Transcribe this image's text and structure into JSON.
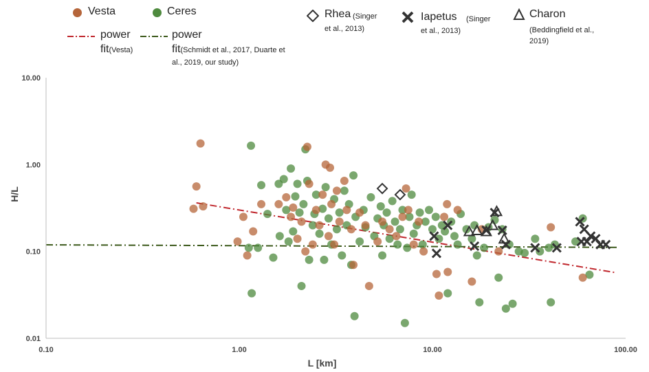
{
  "colors": {
    "vesta": "#b5653a",
    "ceres": "#4e8a3e",
    "vesta_fit": "#c0272d",
    "ceres_fit": "#3d5a1c",
    "markers": "#333333"
  },
  "legend": {
    "vesta": "Vesta",
    "ceres": "Ceres",
    "power_fit_vesta_1": "power",
    "power_fit_vesta_2": "fit",
    "power_fit_vesta_3": "(Vesta)",
    "power_fit_ceres_1": "power",
    "power_fit_ceres_2": "fit",
    "power_fit_ceres_3": "(Schmidt et al., 2017, Duarte et",
    "power_fit_ceres_4": "al., 2019, our study)",
    "rhea": "Rhea",
    "rhea_ref_1": "(Singer",
    "rhea_ref_2": "et al., 2013)",
    "iapetus": "Iapetus",
    "iapetus_ref_1": "(Singer",
    "iapetus_ref_2": "et al., 2013)",
    "charon": "Charon",
    "charon_ref_1": "(Beddingfield et al.,",
    "charon_ref_2": "2019)"
  },
  "chart_data": {
    "type": "scatter",
    "xlabel": "L [km]",
    "ylabel": "H/L",
    "xscale": "log",
    "yscale": "log",
    "xlim": [
      0.1,
      100
    ],
    "ylim": [
      0.01,
      10
    ],
    "xticks": [
      "0.10",
      "1.00",
      "10.00",
      "100.00"
    ],
    "yticks": [
      "0.01",
      "0.10",
      "1.00",
      "10.00"
    ],
    "grid": false,
    "series": [
      {
        "name": "Vesta",
        "marker": "circle",
        "points": [
          [
            0.58,
            0.31
          ],
          [
            0.6,
            0.56
          ],
          [
            0.63,
            1.75
          ],
          [
            0.65,
            0.33
          ],
          [
            0.98,
            0.13
          ],
          [
            1.05,
            0.25
          ],
          [
            1.1,
            0.09
          ],
          [
            1.18,
            0.17
          ],
          [
            1.3,
            0.35
          ],
          [
            1.6,
            0.35
          ],
          [
            1.75,
            0.42
          ],
          [
            1.85,
            0.25
          ],
          [
            1.9,
            0.32
          ],
          [
            2.0,
            0.14
          ],
          [
            2.1,
            0.22
          ],
          [
            2.2,
            0.1
          ],
          [
            2.25,
            1.6
          ],
          [
            2.3,
            0.6
          ],
          [
            2.4,
            0.12
          ],
          [
            2.5,
            0.3
          ],
          [
            2.6,
            0.2
          ],
          [
            2.7,
            0.45
          ],
          [
            2.8,
            1.0
          ],
          [
            2.9,
            0.15
          ],
          [
            2.95,
            0.92
          ],
          [
            3.0,
            0.35
          ],
          [
            3.1,
            0.12
          ],
          [
            3.2,
            0.5
          ],
          [
            3.3,
            0.22
          ],
          [
            3.5,
            0.65
          ],
          [
            3.6,
            0.3
          ],
          [
            3.8,
            0.18
          ],
          [
            3.9,
            0.07
          ],
          [
            4.2,
            0.28
          ],
          [
            4.5,
            0.2
          ],
          [
            4.7,
            0.04
          ],
          [
            5.2,
            0.13
          ],
          [
            5.5,
            0.22
          ],
          [
            6.0,
            0.18
          ],
          [
            6.5,
            0.15
          ],
          [
            7.0,
            0.25
          ],
          [
            7.3,
            0.53
          ],
          [
            7.5,
            0.3
          ],
          [
            8.0,
            0.12
          ],
          [
            8.5,
            0.22
          ],
          [
            9.0,
            0.1
          ],
          [
            10.5,
            0.055
          ],
          [
            10.8,
            0.031
          ],
          [
            11.5,
            0.25
          ],
          [
            11.9,
            0.35
          ],
          [
            12.0,
            0.058
          ],
          [
            13.5,
            0.3
          ],
          [
            16.0,
            0.045
          ],
          [
            18.0,
            0.18
          ],
          [
            22.0,
            0.1
          ],
          [
            41.0,
            0.19
          ],
          [
            60.0,
            0.05
          ]
        ]
      },
      {
        "name": "Ceres",
        "marker": "circle",
        "points": [
          [
            1.12,
            0.11
          ],
          [
            1.15,
            1.65
          ],
          [
            1.16,
            0.033
          ],
          [
            1.25,
            0.11
          ],
          [
            1.3,
            0.58
          ],
          [
            1.4,
            0.27
          ],
          [
            1.5,
            0.085
          ],
          [
            1.6,
            0.6
          ],
          [
            1.62,
            0.15
          ],
          [
            1.7,
            0.68
          ],
          [
            1.75,
            0.3
          ],
          [
            1.8,
            0.13
          ],
          [
            1.85,
            0.9
          ],
          [
            1.9,
            0.17
          ],
          [
            1.95,
            0.43
          ],
          [
            2.0,
            0.6
          ],
          [
            2.05,
            0.28
          ],
          [
            2.1,
            0.04
          ],
          [
            2.15,
            0.35
          ],
          [
            2.2,
            1.5
          ],
          [
            2.25,
            0.65
          ],
          [
            2.3,
            0.08
          ],
          [
            2.4,
            0.2
          ],
          [
            2.45,
            0.27
          ],
          [
            2.5,
            0.45
          ],
          [
            2.6,
            0.16
          ],
          [
            2.7,
            0.31
          ],
          [
            2.75,
            0.08
          ],
          [
            2.8,
            0.55
          ],
          [
            2.9,
            0.24
          ],
          [
            3.0,
            0.12
          ],
          [
            3.1,
            0.4
          ],
          [
            3.2,
            0.18
          ],
          [
            3.3,
            0.28
          ],
          [
            3.4,
            0.09
          ],
          [
            3.5,
            0.5
          ],
          [
            3.6,
            0.2
          ],
          [
            3.7,
            0.35
          ],
          [
            3.8,
            0.07
          ],
          [
            3.9,
            0.75
          ],
          [
            3.95,
            0.018
          ],
          [
            4.0,
            0.25
          ],
          [
            4.2,
            0.13
          ],
          [
            4.4,
            0.3
          ],
          [
            4.5,
            0.19
          ],
          [
            4.8,
            0.42
          ],
          [
            5.0,
            0.15
          ],
          [
            5.2,
            0.24
          ],
          [
            5.4,
            0.33
          ],
          [
            5.5,
            0.09
          ],
          [
            5.6,
            0.2
          ],
          [
            5.8,
            0.28
          ],
          [
            6.0,
            0.14
          ],
          [
            6.2,
            0.38
          ],
          [
            6.4,
            0.22
          ],
          [
            6.6,
            0.12
          ],
          [
            6.8,
            0.18
          ],
          [
            7.0,
            0.3
          ],
          [
            7.2,
            0.015
          ],
          [
            7.4,
            0.11
          ],
          [
            7.6,
            0.25
          ],
          [
            7.8,
            0.45
          ],
          [
            8.0,
            0.16
          ],
          [
            8.3,
            0.2
          ],
          [
            8.6,
            0.28
          ],
          [
            8.9,
            0.12
          ],
          [
            9.2,
            0.22
          ],
          [
            9.6,
            0.3
          ],
          [
            10.0,
            0.18
          ],
          [
            10.4,
            0.25
          ],
          [
            10.8,
            0.14
          ],
          [
            11.2,
            0.2
          ],
          [
            11.6,
            0.17
          ],
          [
            12.0,
            0.033
          ],
          [
            12.5,
            0.22
          ],
          [
            13.0,
            0.15
          ],
          [
            13.5,
            0.12
          ],
          [
            14.0,
            0.27
          ],
          [
            15.0,
            0.18
          ],
          [
            16.0,
            0.14
          ],
          [
            16.5,
            0.2
          ],
          [
            17.0,
            0.09
          ],
          [
            17.5,
            0.026
          ],
          [
            18.5,
            0.11
          ],
          [
            19.5,
            0.19
          ],
          [
            21.0,
            0.23
          ],
          [
            22.0,
            0.05
          ],
          [
            23.0,
            0.18
          ],
          [
            24.0,
            0.022
          ],
          [
            25.0,
            0.12
          ],
          [
            26.0,
            0.025
          ],
          [
            28.0,
            0.1
          ],
          [
            30.0,
            0.096
          ],
          [
            34.0,
            0.14
          ],
          [
            36.0,
            0.1
          ],
          [
            40.0,
            0.11
          ],
          [
            41.0,
            0.026
          ],
          [
            43.0,
            0.12
          ],
          [
            55.0,
            0.13
          ],
          [
            60.0,
            0.24
          ],
          [
            65.0,
            0.054
          ]
        ]
      },
      {
        "name": "Rhea",
        "marker": "diamond",
        "points": [
          [
            5.5,
            0.53
          ],
          [
            6.8,
            0.45
          ]
        ]
      },
      {
        "name": "Iapetus",
        "marker": "x",
        "points": [
          [
            10.2,
            0.15
          ],
          [
            10.5,
            0.095
          ],
          [
            12.0,
            0.2
          ],
          [
            16.5,
            0.115
          ],
          [
            19.0,
            0.175
          ],
          [
            21.0,
            0.28
          ],
          [
            23.0,
            0.175
          ],
          [
            24.0,
            0.12
          ],
          [
            34.0,
            0.11
          ],
          [
            44.0,
            0.11
          ],
          [
            58.0,
            0.22
          ],
          [
            59.0,
            0.13
          ],
          [
            61.0,
            0.18
          ],
          [
            63.0,
            0.13
          ],
          [
            66.0,
            0.15
          ],
          [
            70.0,
            0.14
          ],
          [
            74.0,
            0.12
          ],
          [
            79.0,
            0.12
          ]
        ]
      },
      {
        "name": "Charon",
        "marker": "triangle",
        "points": [
          [
            15.5,
            0.17
          ],
          [
            17.0,
            0.175
          ],
          [
            19.0,
            0.17
          ],
          [
            20.5,
            0.2
          ],
          [
            21.5,
            0.29
          ],
          [
            23.5,
            0.14
          ]
        ]
      }
    ],
    "fits": [
      {
        "name": "power fit (Vesta)",
        "coef": 0.3,
        "exp": -0.37,
        "xrange": [
          0.6,
          90
        ]
      },
      {
        "name": "power fit (Ceres)",
        "coef": 0.1165,
        "exp": -0.01,
        "xrange": [
          0.1,
          90
        ]
      }
    ]
  }
}
